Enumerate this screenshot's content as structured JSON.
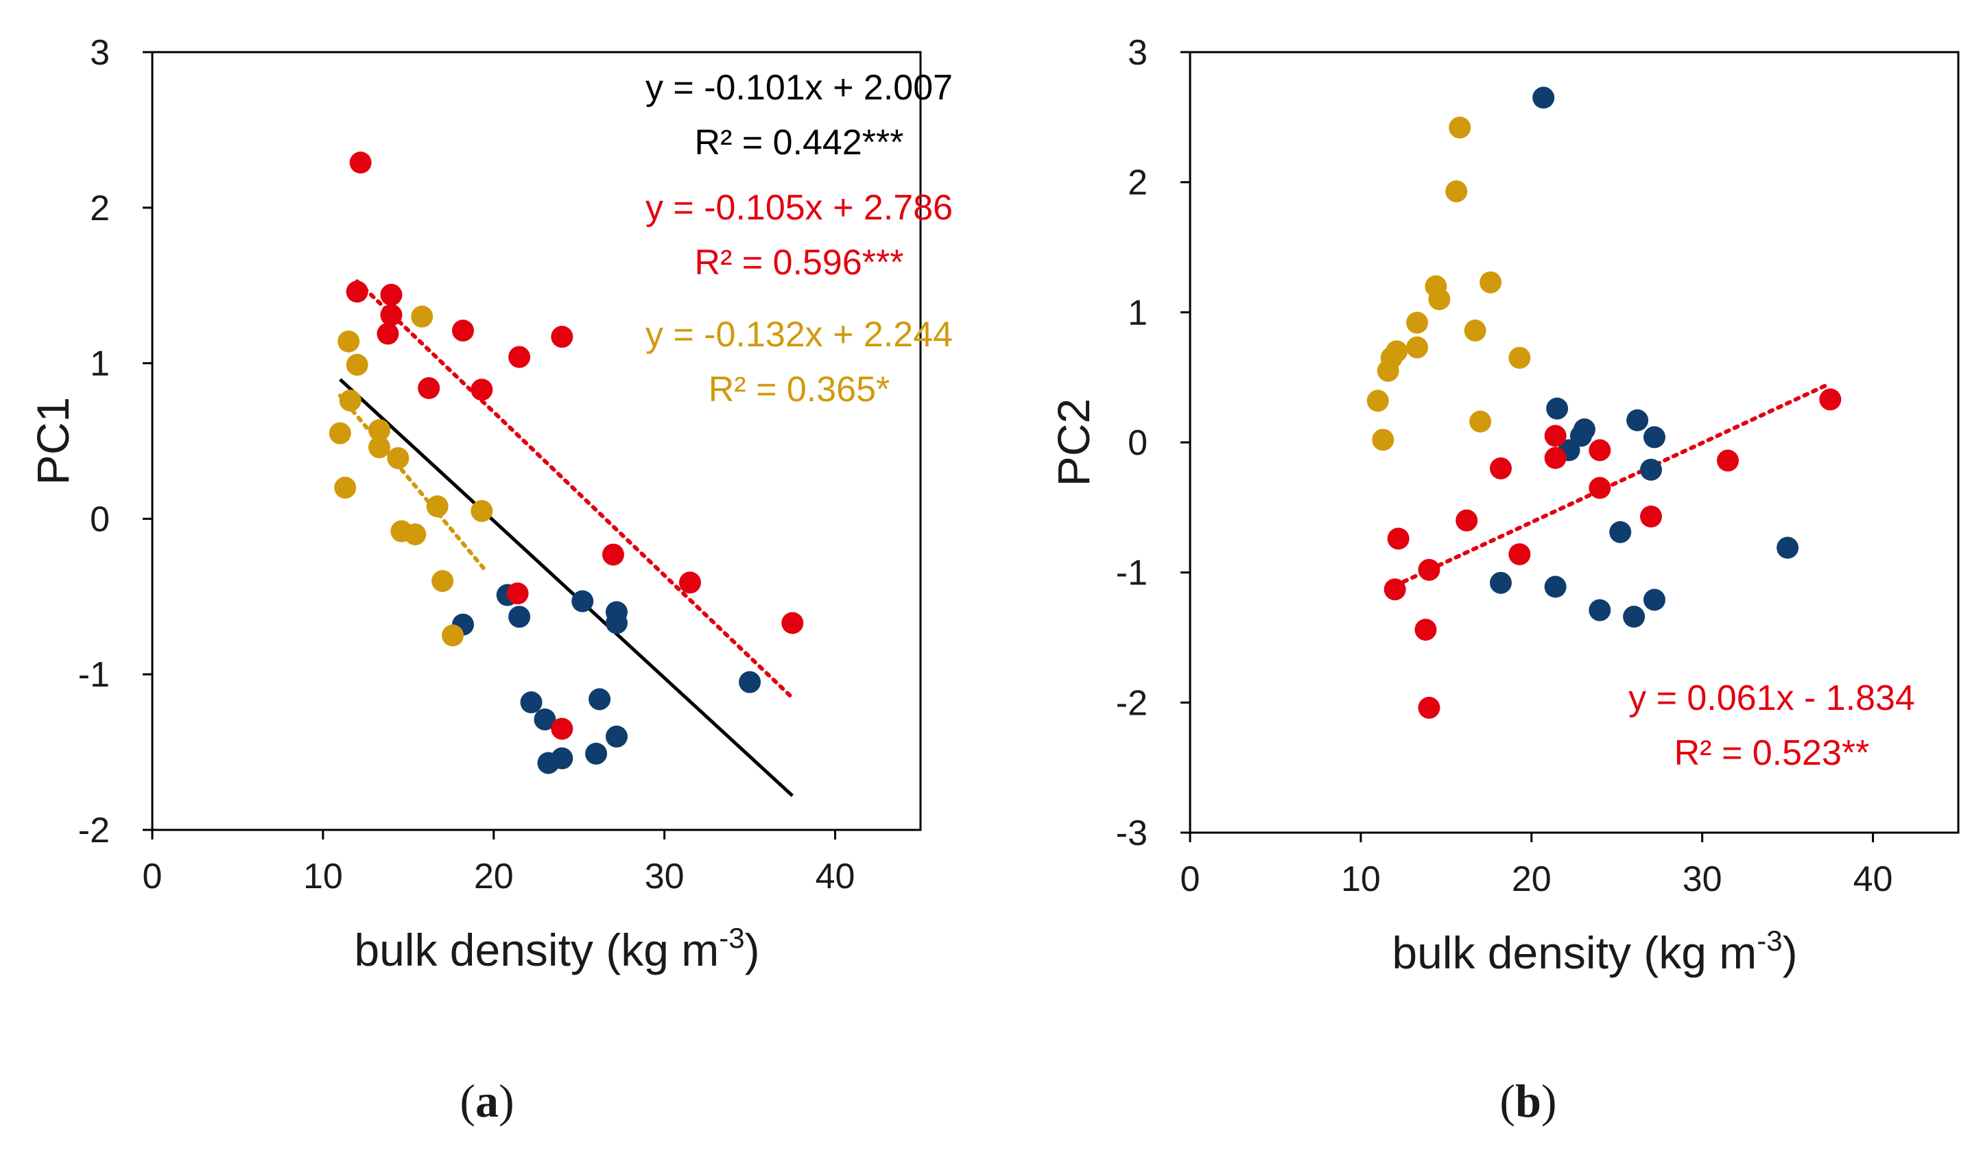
{
  "figure": {
    "colors": {
      "navy": "#0f3d6e",
      "red": "#e3000f",
      "gold": "#d19a0c",
      "black": "#000000"
    }
  },
  "chart_data": [
    {
      "type": "scatter",
      "panel": "(a)",
      "panel_letter": "a",
      "xlabel": "bulk density (kg m",
      "xlabel_sup": "-3",
      "xlabel_close": ")",
      "ylabel": "PC1",
      "xlim": [
        0,
        45
      ],
      "ylim": [
        -2,
        3
      ],
      "xticks": [
        0,
        10,
        20,
        30,
        40
      ],
      "yticks": [
        -2,
        -1,
        0,
        1,
        2,
        3
      ],
      "series": [
        {
          "name": "navy",
          "color": "#0f3d6e",
          "points": [
            [
              18.2,
              -0.68
            ],
            [
              20.8,
              -0.49
            ],
            [
              21.5,
              -0.63
            ],
            [
              22.2,
              -1.18
            ],
            [
              23.0,
              -1.29
            ],
            [
              23.2,
              -1.57
            ],
            [
              24.0,
              -1.54
            ],
            [
              25.2,
              -0.53
            ],
            [
              26.0,
              -1.51
            ],
            [
              26.2,
              -1.16
            ],
            [
              27.2,
              -1.4
            ],
            [
              27.2,
              -0.6
            ],
            [
              27.2,
              -0.67
            ],
            [
              35.0,
              -1.05
            ]
          ]
        },
        {
          "name": "red",
          "color": "#e3000f",
          "points": [
            [
              12.2,
              2.29
            ],
            [
              12.0,
              1.46
            ],
            [
              14.0,
              1.44
            ],
            [
              14.0,
              1.31
            ],
            [
              13.8,
              1.19
            ],
            [
              18.2,
              1.21
            ],
            [
              16.2,
              0.84
            ],
            [
              21.5,
              1.04
            ],
            [
              24.0,
              1.17
            ],
            [
              19.3,
              0.83
            ],
            [
              21.4,
              -0.48
            ],
            [
              27.0,
              -0.23
            ],
            [
              31.5,
              -0.41
            ],
            [
              37.5,
              -0.67
            ],
            [
              24.0,
              -1.35
            ]
          ]
        },
        {
          "name": "gold",
          "color": "#d19a0c",
          "points": [
            [
              11.5,
              1.14
            ],
            [
              12.0,
              0.99
            ],
            [
              15.8,
              1.3
            ],
            [
              11.6,
              0.76
            ],
            [
              11.0,
              0.55
            ],
            [
              13.3,
              0.57
            ],
            [
              13.3,
              0.46
            ],
            [
              14.4,
              0.39
            ],
            [
              11.3,
              0.2
            ],
            [
              16.7,
              0.08
            ],
            [
              19.3,
              0.05
            ],
            [
              14.6,
              -0.08
            ],
            [
              15.4,
              -0.1
            ],
            [
              17.0,
              -0.4
            ],
            [
              17.6,
              -0.75
            ]
          ]
        }
      ],
      "trendlines": [
        {
          "series": "all",
          "color": "#000000",
          "style": "solid",
          "slope": -0.101,
          "intercept": 2.007,
          "x_range": [
            11.0,
            37.5
          ],
          "equation": "y = -0.101x + 2.007",
          "r2": "R² = 0.442***"
        },
        {
          "series": "red",
          "color": "#e3000f",
          "style": "dotted",
          "slope": -0.105,
          "intercept": 2.786,
          "x_range": [
            12.0,
            37.5
          ],
          "equation": "y = -0.105x + 2.786",
          "r2": "R² = 0.596***"
        },
        {
          "series": "gold",
          "color": "#d19a0c",
          "style": "dotted",
          "slope": -0.132,
          "intercept": 2.244,
          "x_range": [
            11.0,
            19.5
          ],
          "equation": "y = -0.132x + 2.244",
          "r2": "R² = 0.365*"
        }
      ]
    },
    {
      "type": "scatter",
      "panel": "(b)",
      "panel_letter": "b",
      "xlabel": "bulk density (kg m",
      "xlabel_sup": "-3",
      "xlabel_close": ")",
      "ylabel": "PC2",
      "xlim": [
        0,
        45
      ],
      "ylim": [
        -3,
        3
      ],
      "xticks": [
        0,
        10,
        20,
        30,
        40
      ],
      "yticks": [
        -3,
        -2,
        -1,
        0,
        1,
        2,
        3
      ],
      "series": [
        {
          "name": "navy",
          "color": "#0f3d6e",
          "points": [
            [
              20.7,
              2.65
            ],
            [
              21.5,
              0.26
            ],
            [
              22.2,
              -0.06
            ],
            [
              22.9,
              0.05
            ],
            [
              23.1,
              0.1
            ],
            [
              26.2,
              0.17
            ],
            [
              27.2,
              0.04
            ],
            [
              27.0,
              -0.21
            ],
            [
              25.2,
              -0.69
            ],
            [
              18.2,
              -1.08
            ],
            [
              21.4,
              -1.11
            ],
            [
              24.0,
              -1.29
            ],
            [
              26.0,
              -1.34
            ],
            [
              27.2,
              -1.21
            ],
            [
              35.0,
              -0.81
            ]
          ]
        },
        {
          "name": "red",
          "color": "#e3000f",
          "points": [
            [
              12.2,
              -0.74
            ],
            [
              12.0,
              -1.13
            ],
            [
              14.0,
              -0.98
            ],
            [
              13.8,
              -1.44
            ],
            [
              14.0,
              -2.04
            ],
            [
              16.2,
              -0.6
            ],
            [
              18.2,
              -0.2
            ],
            [
              19.3,
              -0.86
            ],
            [
              21.4,
              -0.12
            ],
            [
              21.4,
              0.05
            ],
            [
              24.0,
              -0.06
            ],
            [
              24.0,
              -0.35
            ],
            [
              27.0,
              -0.57
            ],
            [
              31.5,
              -0.14
            ],
            [
              37.5,
              0.33
            ]
          ]
        },
        {
          "name": "gold",
          "color": "#d19a0c",
          "points": [
            [
              15.8,
              2.42
            ],
            [
              15.6,
              1.93
            ],
            [
              14.4,
              1.2
            ],
            [
              14.6,
              1.1
            ],
            [
              17.6,
              1.23
            ],
            [
              13.3,
              0.92
            ],
            [
              13.3,
              0.73
            ],
            [
              16.7,
              0.86
            ],
            [
              19.3,
              0.65
            ],
            [
              11.6,
              0.55
            ],
            [
              11.8,
              0.65
            ],
            [
              12.1,
              0.7
            ],
            [
              11.0,
              0.32
            ],
            [
              11.3,
              0.02
            ],
            [
              17.0,
              0.16
            ]
          ]
        }
      ],
      "trendlines": [
        {
          "series": "red",
          "color": "#e3000f",
          "style": "dotted",
          "slope": 0.061,
          "intercept": -1.834,
          "x_range": [
            12.0,
            37.5
          ],
          "equation": "y = 0.061x - 1.834",
          "r2": "R² = 0.523**"
        }
      ]
    }
  ]
}
